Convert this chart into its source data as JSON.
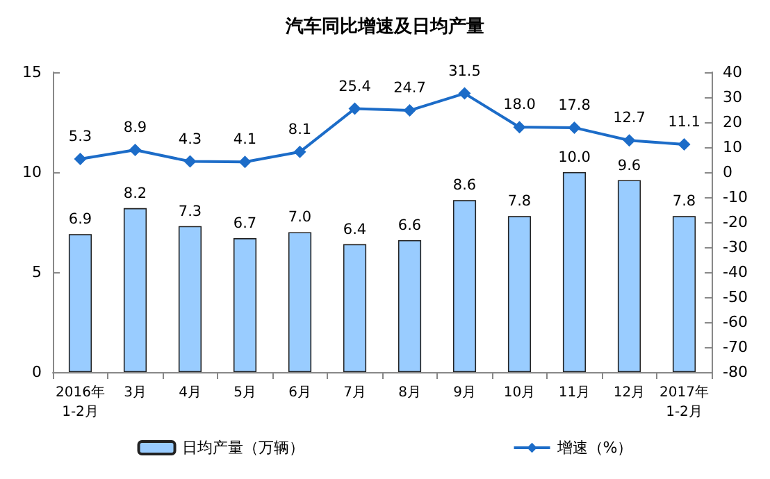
{
  "chart_data": {
    "type": "bar",
    "title": "汽车同比增速及日均产量",
    "categories": [
      "2016年\n1-2月",
      "3月",
      "4月",
      "5月",
      "6月",
      "7月",
      "8月",
      "9月",
      "10月",
      "11月",
      "12月",
      "2017年\n1-2月"
    ],
    "series": [
      {
        "name": "日均产量（万辆）",
        "color": "#99ccff",
        "values": [
          6.9,
          8.2,
          7.3,
          6.7,
          7.0,
          6.4,
          6.6,
          8.6,
          7.8,
          10.0,
          9.6,
          7.8
        ],
        "value_labels": [
          "6.9",
          "8.2",
          "7.3",
          "6.7",
          "7.0",
          "6.4",
          "6.6",
          "8.6",
          "7.8",
          "10.0",
          "9.6",
          "7.8"
        ]
      },
      {
        "name": "增速（%）",
        "type": "line",
        "axis": "y2",
        "color": "#1c6cc8",
        "marker": "diamond",
        "values": [
          5.3,
          8.9,
          4.3,
          4.1,
          8.1,
          25.4,
          24.7,
          31.5,
          18.0,
          17.8,
          12.7,
          11.1
        ],
        "value_labels": [
          "5.3",
          "8.9",
          "4.3",
          "4.1",
          "8.1",
          "25.4",
          "24.7",
          "31.5",
          "18.0",
          "17.8",
          "12.7",
          "11.1"
        ]
      }
    ],
    "ylim": [
      0,
      15
    ],
    "yticks": [
      0,
      5,
      10,
      15
    ],
    "y2lim": [
      -80,
      40
    ],
    "y2ticks": [
      -80,
      -70,
      -60,
      -50,
      -40,
      -30,
      -20,
      -10,
      0,
      10,
      20,
      30,
      40
    ],
    "legend": "bottom",
    "grid": false
  }
}
